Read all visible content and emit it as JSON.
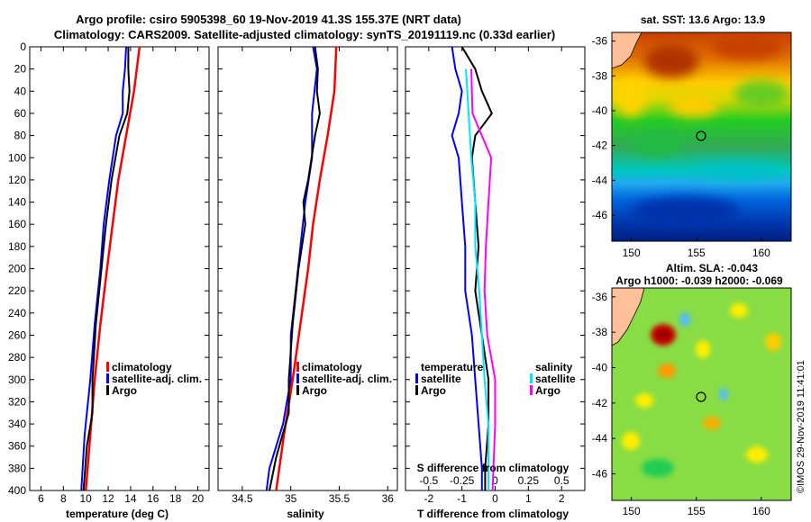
{
  "title_line1": "Argo profile: csiro 5905398_60 19-Nov-2019 41.3S 155.37E (NRT data)",
  "title_line2": "Climatology: CARS2009. Satellite-adjusted climatology: synTS_20191119.nc (0.33d earlier)",
  "map_top_title": "sat. SST: 13.6 Argo: 13.9",
  "map_bottom_title1": "Altim. SLA: -0.043",
  "map_bottom_title2": "Argo h1000: -0.039 h2000: -0.069",
  "side_label": "©IMOS 29-Nov-2019 11:41:01",
  "colors": {
    "climatology": "#ff0000",
    "satellite": "#0000ff",
    "argo": "#000000",
    "sat_salinity": "#00e5ff",
    "clim_salinity": "#ff00ff",
    "land": "#ffbf99"
  },
  "chart_data": [
    {
      "type": "line",
      "name": "temperature",
      "xlabel": "temperature (deg C)",
      "ylabel": "depth",
      "xlim": [
        5,
        21
      ],
      "ylim": [
        400,
        0
      ],
      "xticks": [
        6,
        8,
        10,
        12,
        14,
        16,
        18,
        20
      ],
      "yticks": [
        0,
        20,
        40,
        60,
        80,
        100,
        120,
        140,
        160,
        180,
        200,
        220,
        240,
        260,
        280,
        300,
        320,
        340,
        360,
        380,
        400
      ],
      "legend": [
        "climatology",
        "satellite-adj. clim.",
        "Argo"
      ],
      "series": [
        {
          "name": "climatology",
          "color": "#ff0000",
          "depth": [
            0,
            40,
            80,
            120,
            160,
            200,
            250,
            300,
            350,
            400
          ],
          "values": [
            14.8,
            14.3,
            13.6,
            12.9,
            12.4,
            11.9,
            11.3,
            10.8,
            10.4,
            10.0
          ]
        },
        {
          "name": "satellite-adj. clim.",
          "color": "#0000ff",
          "depth": [
            0,
            20,
            40,
            60,
            80,
            120,
            160,
            200,
            250,
            300,
            350,
            400
          ],
          "values": [
            13.6,
            13.5,
            13.3,
            13.3,
            12.7,
            12.1,
            11.6,
            11.3,
            10.8,
            10.4,
            9.9,
            9.6
          ]
        },
        {
          "name": "Argo",
          "color": "#000000",
          "depth": [
            0,
            20,
            40,
            60,
            80,
            120,
            160,
            200,
            250,
            300,
            330,
            360,
            400
          ],
          "values": [
            13.8,
            13.8,
            13.9,
            13.7,
            13.0,
            12.3,
            11.8,
            11.4,
            10.9,
            10.6,
            10.6,
            10.1,
            9.8
          ]
        }
      ]
    },
    {
      "type": "line",
      "name": "salinity",
      "xlabel": "salinity",
      "ylabel": "depth",
      "xlim": [
        34.25,
        36.1
      ],
      "ylim": [
        400,
        0
      ],
      "xticks": [
        34.5,
        35,
        35.5,
        36
      ],
      "xtick_labels": [
        "34.5",
        "35",
        "35.5",
        "36"
      ],
      "legend": [
        "climatology",
        "satellite-adj. clim.",
        "Argo"
      ],
      "series": [
        {
          "name": "climatology",
          "color": "#ff0000",
          "depth": [
            0,
            40,
            80,
            120,
            160,
            200,
            250,
            300,
            350,
            400
          ],
          "values": [
            35.47,
            35.45,
            35.38,
            35.3,
            35.23,
            35.18,
            35.1,
            35.02,
            34.93,
            34.85
          ]
        },
        {
          "name": "satellite-adj. clim.",
          "color": "#0000ff",
          "depth": [
            0,
            20,
            60,
            100,
            140,
            180,
            220,
            260,
            300,
            340,
            380,
            400
          ],
          "values": [
            35.23,
            35.27,
            35.22,
            35.22,
            35.15,
            35.1,
            35.05,
            35.0,
            35.0,
            34.92,
            34.78,
            34.75
          ]
        },
        {
          "name": "Argo",
          "color": "#000000",
          "depth": [
            0,
            20,
            40,
            60,
            80,
            120,
            140,
            160,
            200,
            250,
            300,
            330,
            370,
            400
          ],
          "values": [
            35.25,
            35.28,
            35.27,
            35.3,
            35.25,
            35.18,
            35.13,
            35.15,
            35.08,
            35.02,
            34.98,
            34.98,
            34.85,
            34.78
          ]
        }
      ]
    },
    {
      "type": "line",
      "name": "difference",
      "xlabel": "T difference from climatology",
      "ylabel": "depth",
      "xlim": [
        -2.7,
        2.7
      ],
      "ylim": [
        400,
        0
      ],
      "xticks": [
        -2,
        -1,
        0,
        1,
        2
      ],
      "xtick_labels": [
        "-2",
        "-1",
        "0",
        "1",
        "2"
      ],
      "secondary_xlabel": "S difference from climatology",
      "secondary_xticks": [
        -0.5,
        -0.25,
        0,
        0.25,
        0.5
      ],
      "secondary_xtick_labels": [
        "-0.5",
        "-0.25",
        "0",
        "0.25",
        "0.5"
      ],
      "legend_temperature": {
        "title": "temperature",
        "items": [
          "satellite",
          "Argo"
        ]
      },
      "legend_salinity": {
        "title": "salinity",
        "items": [
          "satellite",
          "Argo"
        ]
      },
      "series": [
        {
          "name": "T satellite",
          "color": "#0000ff",
          "depth": [
            0,
            20,
            40,
            60,
            80,
            100,
            140,
            180,
            220,
            260,
            300,
            340,
            380,
            400
          ],
          "values": [
            -1.3,
            -1.2,
            -1.0,
            -1.1,
            -1.3,
            -1.1,
            -1.0,
            -0.9,
            -0.9,
            -0.7,
            -0.6,
            -0.5,
            -0.4,
            -0.4
          ]
        },
        {
          "name": "T Argo",
          "color": "#000000",
          "depth": [
            0,
            20,
            40,
            60,
            80,
            100,
            140,
            180,
            220,
            260,
            300,
            340,
            380,
            400
          ],
          "values": [
            -1.0,
            -0.6,
            -0.4,
            -0.1,
            -0.6,
            -0.7,
            -0.6,
            -0.5,
            -0.6,
            -0.4,
            -0.2,
            -0.2,
            -0.3,
            -0.3
          ]
        },
        {
          "name": "S satellite",
          "color": "#00e5ff",
          "depth": [
            20,
            60,
            100,
            140,
            180,
            220,
            260,
            300,
            340,
            400
          ],
          "values": [
            -0.22,
            -0.2,
            -0.18,
            -0.15,
            -0.15,
            -0.12,
            -0.1,
            -0.08,
            -0.05,
            -0.05
          ]
        },
        {
          "name": "S Argo",
          "color": "#ff00ff",
          "depth": [
            20,
            60,
            100,
            140,
            180,
            220,
            260,
            300,
            340,
            400
          ],
          "values": [
            -0.18,
            -0.17,
            -0.03,
            -0.05,
            -0.07,
            -0.08,
            -0.06,
            0.0,
            0.0,
            -0.02
          ]
        }
      ]
    },
    {
      "type": "heatmap",
      "name": "sst-map",
      "title": "sat. SST: 13.6 Argo: 13.9",
      "xticks": [
        150,
        155,
        160
      ],
      "yticks": [
        -36,
        -38,
        -40,
        -42,
        -44,
        -46
      ],
      "xlim": [
        148.5,
        162.3
      ],
      "ylim": [
        -47.5,
        -35.5
      ],
      "marker": {
        "lon": 155.37,
        "lat": -41.3
      }
    },
    {
      "type": "heatmap",
      "name": "sla-map",
      "title": "Altim. SLA: -0.043",
      "xticks": [
        150,
        155,
        160
      ],
      "yticks": [
        -36,
        -38,
        -40,
        -42,
        -44,
        -46
      ],
      "xlim": [
        148.5,
        162.3
      ],
      "ylim": [
        -47.5,
        -35.5
      ],
      "marker": {
        "lon": 155.37,
        "lat": -41.3
      }
    }
  ]
}
